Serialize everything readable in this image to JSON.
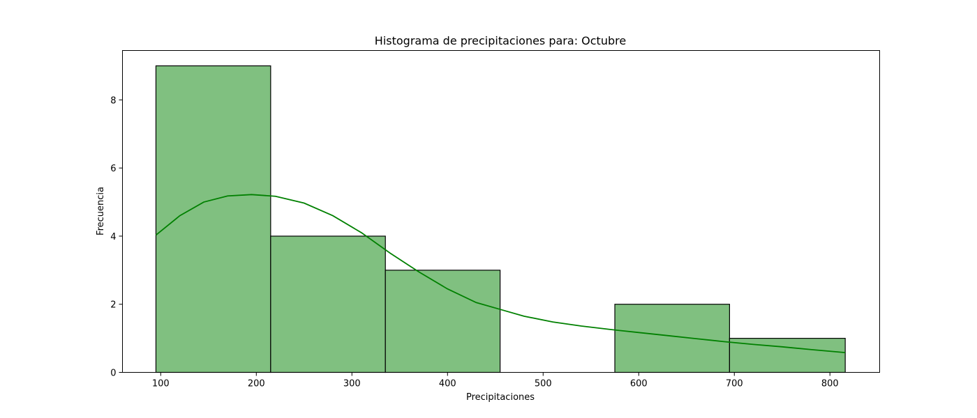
{
  "chart_data": {
    "type": "bar",
    "title": "Histograma de precipitaciones para: Octubre",
    "xlabel": "Precipitaciones",
    "ylabel": "Frecuencia",
    "xlim": [
      60,
      852
    ],
    "ylim": [
      0,
      9.45
    ],
    "xticks": [
      100,
      200,
      300,
      400,
      500,
      600,
      700,
      800
    ],
    "yticks": [
      0,
      2,
      4,
      6,
      8
    ],
    "bins": [
      {
        "start": 95,
        "end": 215,
        "count": 9
      },
      {
        "start": 215,
        "end": 335,
        "count": 4
      },
      {
        "start": 335,
        "end": 455,
        "count": 3
      },
      {
        "start": 455,
        "end": 575,
        "count": 0
      },
      {
        "start": 575,
        "end": 695,
        "count": 2
      },
      {
        "start": 695,
        "end": 816,
        "count": 1
      }
    ],
    "kde": {
      "x": [
        95,
        120,
        145,
        170,
        195,
        220,
        250,
        280,
        310,
        340,
        370,
        400,
        430,
        455,
        480,
        510,
        540,
        570,
        600,
        630,
        660,
        690,
        720,
        750,
        780,
        816
      ],
      "y": [
        4.03,
        4.6,
        5.0,
        5.18,
        5.22,
        5.17,
        4.97,
        4.6,
        4.1,
        3.5,
        2.95,
        2.45,
        2.05,
        1.85,
        1.65,
        1.48,
        1.36,
        1.26,
        1.17,
        1.08,
        0.99,
        0.9,
        0.82,
        0.75,
        0.67,
        0.58
      ]
    },
    "colors": {
      "bar_fill": "#80c080",
      "bar_edge": "#000000",
      "kde_line": "#008000"
    },
    "grid": false,
    "legend": "none"
  }
}
